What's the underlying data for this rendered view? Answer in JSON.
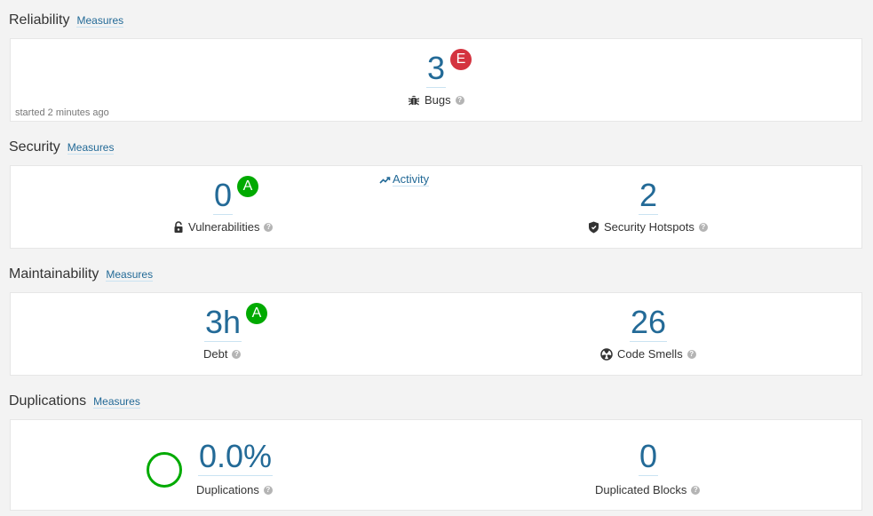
{
  "reliability": {
    "title": "Reliability",
    "measures_link": "Measures",
    "bugs": {
      "value": "3",
      "rating": "E",
      "label": "Bugs"
    },
    "started": "started 2 minutes ago"
  },
  "security": {
    "title": "Security",
    "measures_link": "Measures",
    "vulnerabilities": {
      "value": "0",
      "rating": "A",
      "label": "Vulnerabilities"
    },
    "activity_link": "Activity",
    "hotspots": {
      "value": "2",
      "label": "Security Hotspots"
    }
  },
  "maintainability": {
    "title": "Maintainability",
    "measures_link": "Measures",
    "debt": {
      "value": "3h",
      "rating": "A",
      "label": "Debt"
    },
    "code_smells": {
      "value": "26",
      "label": "Code Smells"
    }
  },
  "duplications": {
    "title": "Duplications",
    "measures_link": "Measures",
    "duplications": {
      "value": "0.0%",
      "label": "Duplications"
    },
    "duplicated_blocks": {
      "value": "0",
      "label": "Duplicated Blocks"
    }
  },
  "help_icon_glyph": "?",
  "colors": {
    "link": "#236a97",
    "rating_e": "#d4333f",
    "rating_a": "#00aa00",
    "duplication_ring": "#00aa00"
  }
}
